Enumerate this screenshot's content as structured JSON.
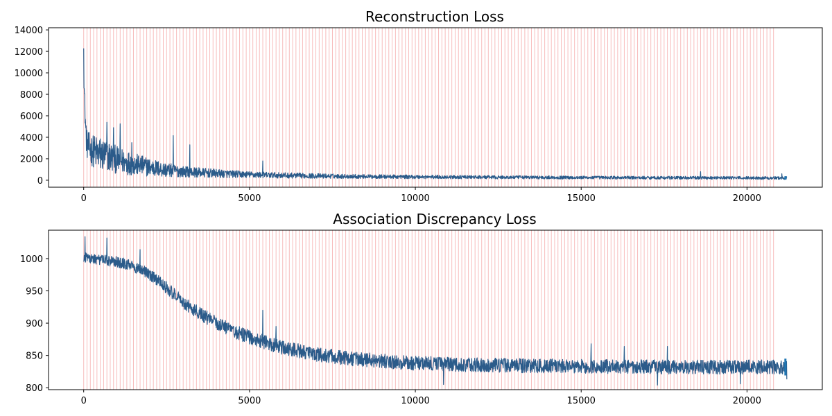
{
  "chart_data": [
    {
      "type": "line",
      "title": "Reconstruction Loss",
      "xlabel": "",
      "ylabel": "",
      "xlim": [
        -1060,
        22270
      ],
      "ylim": [
        -650,
        14200
      ],
      "x_ticks": [
        0,
        5000,
        10000,
        15000,
        20000
      ],
      "x_tick_labels": [
        "0",
        "5000",
        "10000",
        "15000",
        "20000"
      ],
      "y_ticks": [
        0,
        2000,
        4000,
        6000,
        8000,
        10000,
        12000,
        14000
      ],
      "y_tick_labels": [
        "0",
        "2000",
        "4000",
        "6000",
        "8000",
        "10000",
        "12000",
        "14000"
      ],
      "grid": false,
      "series_color": "#1f77b4",
      "series_dark_color": "#2b5b8a",
      "markers": {
        "color": "#f4a6a6",
        "start": 0,
        "end": 20800,
        "interval": 100
      },
      "series": [
        {
          "x_end": 21200,
          "points": [
            [
              0,
              13500
            ],
            [
              10,
              9000
            ],
            [
              30,
              7200
            ],
            [
              60,
              4800
            ],
            [
              100,
              3300
            ],
            [
              200,
              2900
            ],
            [
              300,
              2700
            ],
            [
              500,
              2400
            ],
            [
              750,
              2200
            ],
            [
              1000,
              1900
            ],
            [
              1500,
              1500
            ],
            [
              2000,
              1200
            ],
            [
              2500,
              950
            ],
            [
              3000,
              800
            ],
            [
              4000,
              620
            ],
            [
              5000,
              520
            ],
            [
              6000,
              450
            ],
            [
              7000,
              400
            ],
            [
              8000,
              360
            ],
            [
              10000,
              310
            ],
            [
              12000,
              280
            ],
            [
              15000,
              250
            ],
            [
              18000,
              230
            ],
            [
              20000,
              220
            ],
            [
              21200,
              210
            ]
          ],
          "noise": [
            [
              0,
              1500
            ],
            [
              500,
              2000
            ],
            [
              1000,
              1500
            ],
            [
              2000,
              1000
            ],
            [
              3000,
              600
            ],
            [
              5000,
              350
            ],
            [
              8000,
              230
            ],
            [
              12000,
              180
            ],
            [
              21200,
              160
            ]
          ],
          "spikes": [
            [
              700,
              5400
            ],
            [
              900,
              4900
            ],
            [
              1100,
              5250
            ],
            [
              1450,
              3500
            ],
            [
              2700,
              4150
            ],
            [
              3200,
              3300
            ],
            [
              5400,
              1800
            ],
            [
              18600,
              800
            ],
            [
              21050,
              600
            ]
          ]
        }
      ]
    },
    {
      "type": "line",
      "title": "Association Discrepancy Loss",
      "xlabel": "",
      "ylabel": "",
      "xlim": [
        -1060,
        22270
      ],
      "ylim": [
        797,
        1044
      ],
      "x_ticks": [
        0,
        5000,
        10000,
        15000,
        20000
      ],
      "x_tick_labels": [
        "0",
        "5000",
        "10000",
        "15000",
        "20000"
      ],
      "y_ticks": [
        800,
        850,
        900,
        950,
        1000
      ],
      "y_tick_labels": [
        "800",
        "850",
        "900",
        "950",
        "1000"
      ],
      "grid": false,
      "series_color": "#1f77b4",
      "series_dark_color": "#2b5b8a",
      "markers": {
        "color": "#f4a6a6",
        "start": 0,
        "end": 20800,
        "interval": 100
      },
      "series": [
        {
          "x_end": 21200,
          "points": [
            [
              0,
              1002
            ],
            [
              500,
              998
            ],
            [
              1000,
              995
            ],
            [
              1500,
              988
            ],
            [
              2000,
              975
            ],
            [
              2500,
              955
            ],
            [
              3000,
              932
            ],
            [
              3500,
              915
            ],
            [
              4000,
              900
            ],
            [
              4500,
              888
            ],
            [
              5000,
              878
            ],
            [
              6000,
              862
            ],
            [
              7000,
              852
            ],
            [
              8000,
              845
            ],
            [
              10000,
              838
            ],
            [
              12000,
              835
            ],
            [
              15000,
              833
            ],
            [
              18000,
              832
            ],
            [
              21200,
              832
            ]
          ],
          "noise": [
            [
              0,
              9
            ],
            [
              2000,
              11
            ],
            [
              5000,
              13
            ],
            [
              10000,
              13
            ],
            [
              21200,
              13
            ]
          ],
          "spikes": [
            [
              40,
              1034
            ],
            [
              700,
              1032
            ],
            [
              1700,
              1014
            ],
            [
              5400,
              920
            ],
            [
              5800,
              895
            ],
            [
              10850,
              805
            ],
            [
              15300,
              868
            ],
            [
              16300,
              864
            ],
            [
              17300,
              804
            ],
            [
              17600,
              864
            ],
            [
              19800,
              806
            ],
            [
              21200,
              813
            ]
          ]
        }
      ]
    }
  ]
}
